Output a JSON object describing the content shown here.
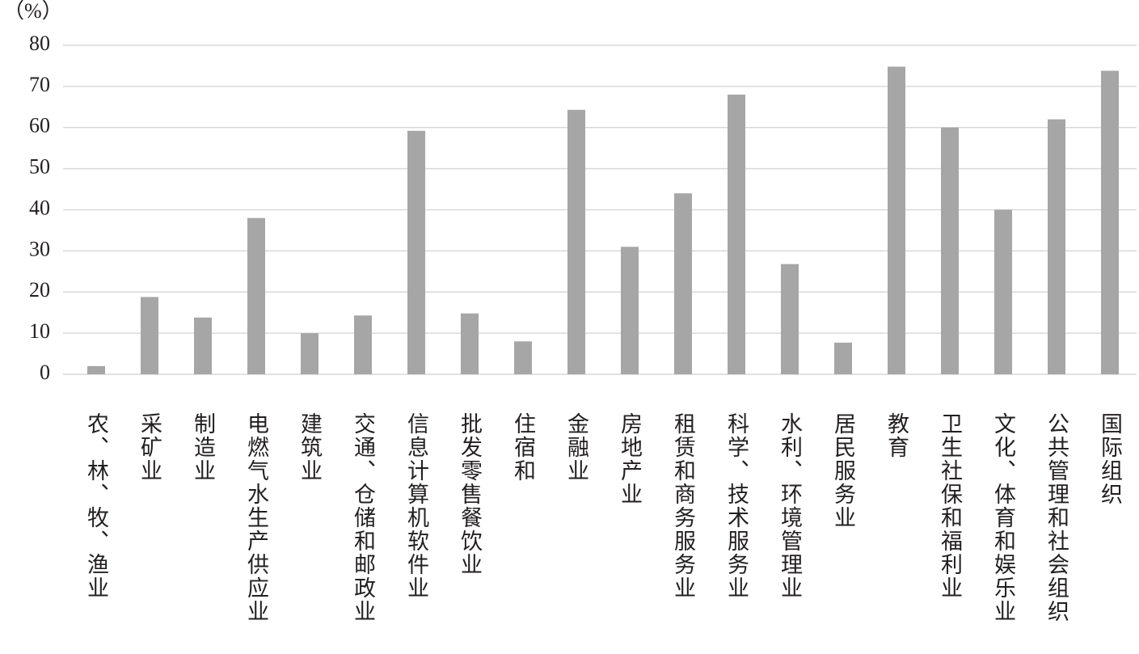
{
  "chart_data": {
    "type": "bar",
    "y_label": "（%）",
    "categories": [
      "农、林、牧、渔业",
      "采矿业",
      "制造业",
      "电燃气水生产供应业",
      "建筑业",
      "交通、仓储和邮政业",
      "信息计算机软件业",
      "批发零售餐饮业",
      "住宿和",
      "金融业",
      "房地产业",
      "租赁和商务服务业",
      "科学、技术服务业",
      "水利、环境管理业",
      "居民服务业",
      "教育",
      "卫生社保和福利业",
      "文化、体育和娱乐业",
      "公共管理和社会组织",
      "国际组织"
    ],
    "values": [
      2,
      18.8,
      13.8,
      38,
      10,
      14.3,
      59.2,
      14.8,
      8,
      64.3,
      31,
      44,
      68,
      26.8,
      7.7,
      74.8,
      60,
      40,
      62,
      73.8
    ],
    "color": "#a6a6a6",
    "ylim": [
      0,
      80
    ],
    "yticks": [
      0,
      10,
      20,
      30,
      40,
      50,
      60,
      70,
      80
    ],
    "grid": true
  }
}
